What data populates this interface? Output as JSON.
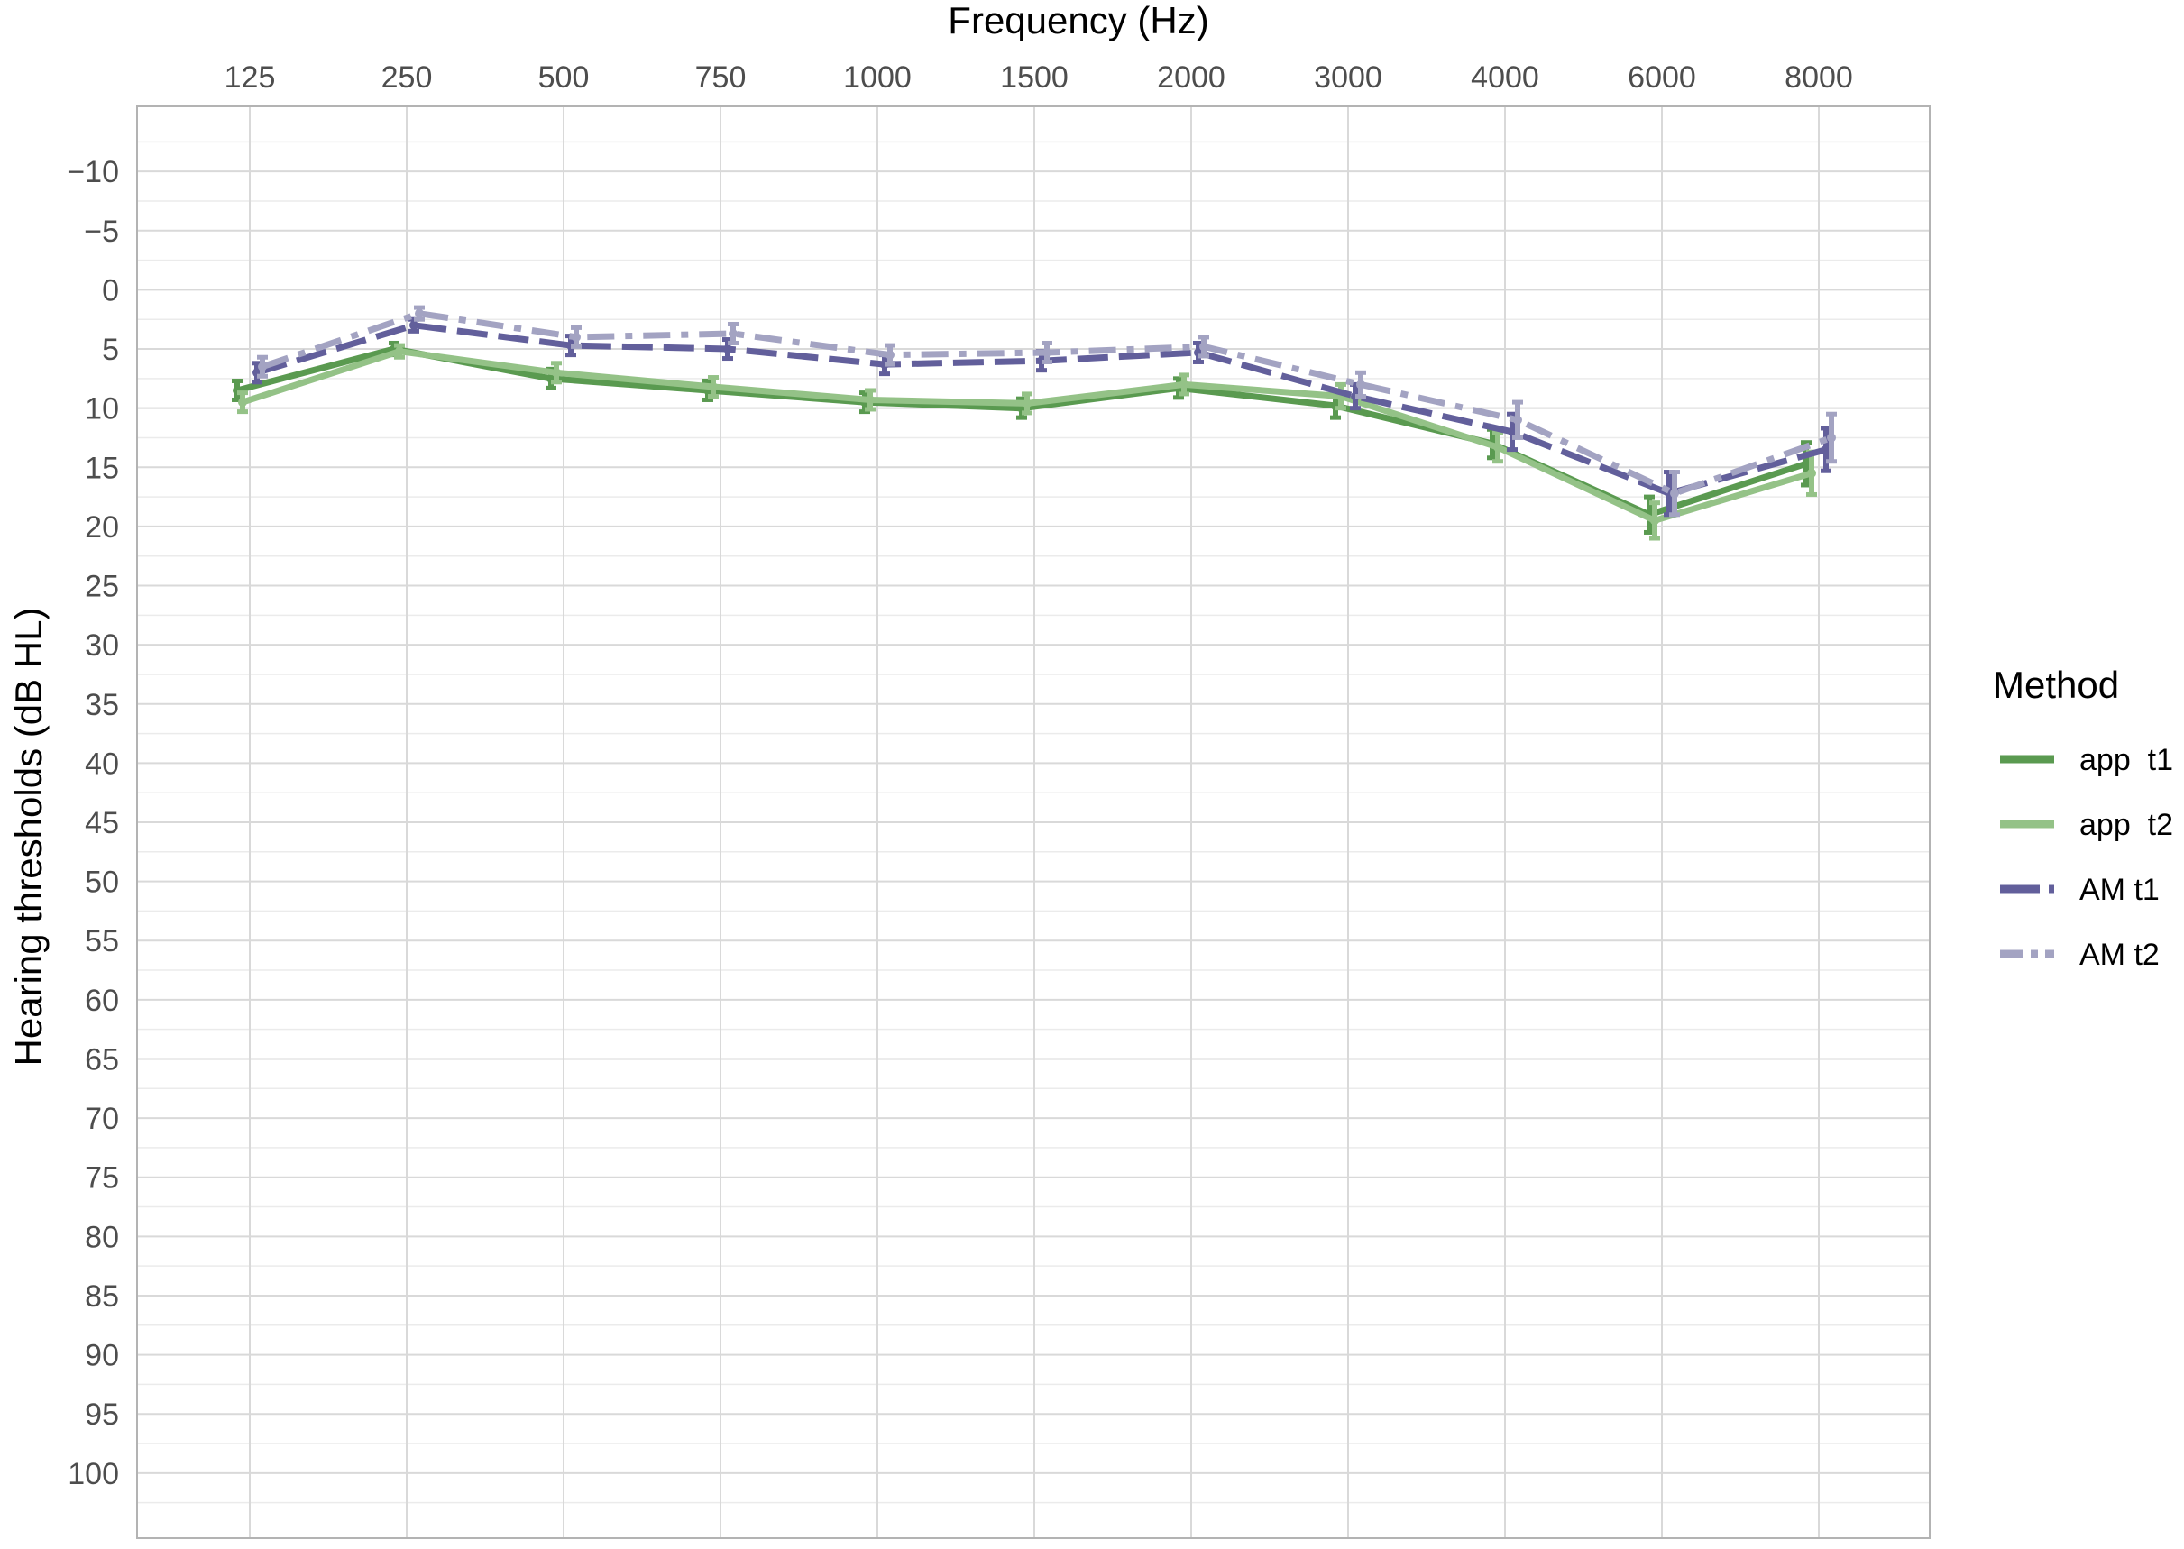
{
  "chart_data": {
    "type": "line",
    "xlabel": "Frequency (Hz)",
    "ylabel": "Hearing thresholds (dB HL)",
    "categories": [
      "125",
      "250",
      "500",
      "750",
      "1000",
      "1500",
      "2000",
      "3000",
      "4000",
      "6000",
      "8000"
    ],
    "y_ticks": [
      "−10",
      "−5",
      "0",
      "5",
      "10",
      "15",
      "20",
      "25",
      "30",
      "35",
      "40",
      "45",
      "50",
      "55",
      "60",
      "65",
      "70",
      "75",
      "80",
      "85",
      "90",
      "95",
      "100"
    ],
    "y_tick_values": [
      -10,
      -5,
      0,
      5,
      10,
      15,
      20,
      25,
      30,
      35,
      40,
      45,
      50,
      55,
      60,
      65,
      70,
      75,
      80,
      85,
      90,
      95,
      100
    ],
    "ylim": [
      -15.5,
      105.5
    ],
    "y_reversed": true,
    "x_axis_position": "top",
    "grid": true,
    "legend_position": "right",
    "legend_title": "Method",
    "series": [
      {
        "name": "app  t1",
        "color": "#5a9a50",
        "dash": "solid",
        "values": [
          8.5,
          5.0,
          7.5,
          8.5,
          9.5,
          10.0,
          8.3,
          9.8,
          13.0,
          19.0,
          14.7
        ],
        "error": [
          0.8,
          0.5,
          0.8,
          0.8,
          0.8,
          0.8,
          0.8,
          1.0,
          1.2,
          1.5,
          1.8
        ]
      },
      {
        "name": "app  t2",
        "color": "#94c287",
        "dash": "solid",
        "values": [
          9.5,
          5.2,
          7.0,
          8.2,
          9.3,
          9.6,
          8.0,
          9.0,
          13.3,
          19.5,
          15.5
        ],
        "error": [
          0.8,
          0.5,
          0.8,
          0.8,
          0.8,
          0.8,
          0.8,
          1.0,
          1.2,
          1.5,
          1.8
        ]
      },
      {
        "name": "AM t1",
        "color": "#625f9b",
        "dash": "longdash",
        "values": [
          7.0,
          3.0,
          4.7,
          5.0,
          6.3,
          6.0,
          5.3,
          9.0,
          12.0,
          17.2,
          13.5
        ],
        "error": [
          0.8,
          0.5,
          0.8,
          0.8,
          0.8,
          0.8,
          0.8,
          1.0,
          1.5,
          1.8,
          1.8
        ]
      },
      {
        "name": "AM t2",
        "color": "#a3a3c2",
        "dash": "dashdot",
        "values": [
          6.5,
          2.0,
          4.0,
          3.7,
          5.5,
          5.3,
          4.8,
          8.0,
          11.0,
          17.2,
          12.5
        ],
        "error": [
          0.8,
          0.5,
          0.8,
          0.8,
          0.8,
          0.8,
          0.8,
          1.0,
          1.5,
          1.8,
          2.0
        ]
      }
    ]
  }
}
